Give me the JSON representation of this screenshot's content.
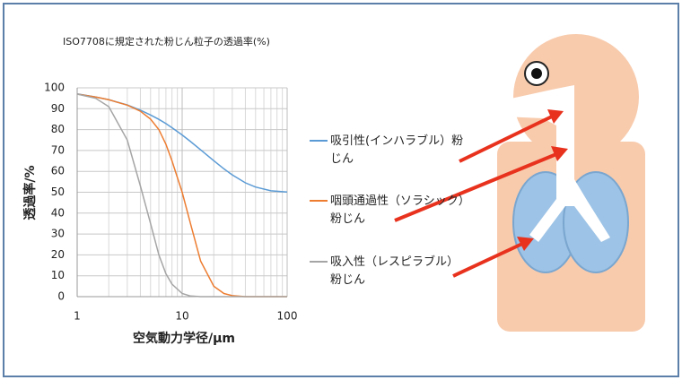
{
  "chart_data": {
    "type": "line",
    "title": "ISO7708に規定された粉じん粒子の透過率(%)",
    "x_label": "空気動力学径/μm",
    "y_label": "透過率/%",
    "x": [
      1,
      1.5,
      2,
      3,
      4,
      5,
      6,
      7,
      8,
      10,
      12,
      15,
      20,
      25,
      30,
      40,
      50,
      70,
      100
    ],
    "series": [
      {
        "name": "吸引性(インハラブル）粉じん",
        "color": "#5b9bd5",
        "values": [
          97.1,
          95.6,
          94.3,
          91.8,
          89.3,
          87.0,
          84.9,
          82.9,
          80.9,
          77.4,
          74.3,
          70.3,
          65.1,
          61.2,
          58.3,
          54.5,
          52.5,
          50.7,
          50.1
        ]
      },
      {
        "name": "咽頭通過性（ソラシック）粉じん",
        "color": "#ed7d31",
        "values": [
          97.0,
          95.6,
          94.3,
          91.7,
          88.8,
          85,
          80,
          73,
          65,
          50,
          35,
          17,
          5,
          1.5,
          0.5,
          0,
          0,
          0,
          0
        ]
      },
      {
        "name": "吸入性（レスピラブル）粉じん",
        "color": "#a5a5a5",
        "values": [
          97,
          95,
          91,
          75,
          53,
          35,
          20,
          11,
          6,
          1.5,
          0.3,
          0,
          0,
          0,
          0,
          0,
          0,
          0,
          0
        ]
      }
    ],
    "xlim": [
      1,
      100
    ],
    "xticks": [
      1,
      10,
      100
    ],
    "x_log": true,
    "ylim": [
      0,
      100
    ],
    "yticks": [
      0,
      10,
      20,
      30,
      40,
      50,
      60,
      70,
      80,
      90,
      100
    ],
    "grid": true,
    "minor_grid": true
  }
}
